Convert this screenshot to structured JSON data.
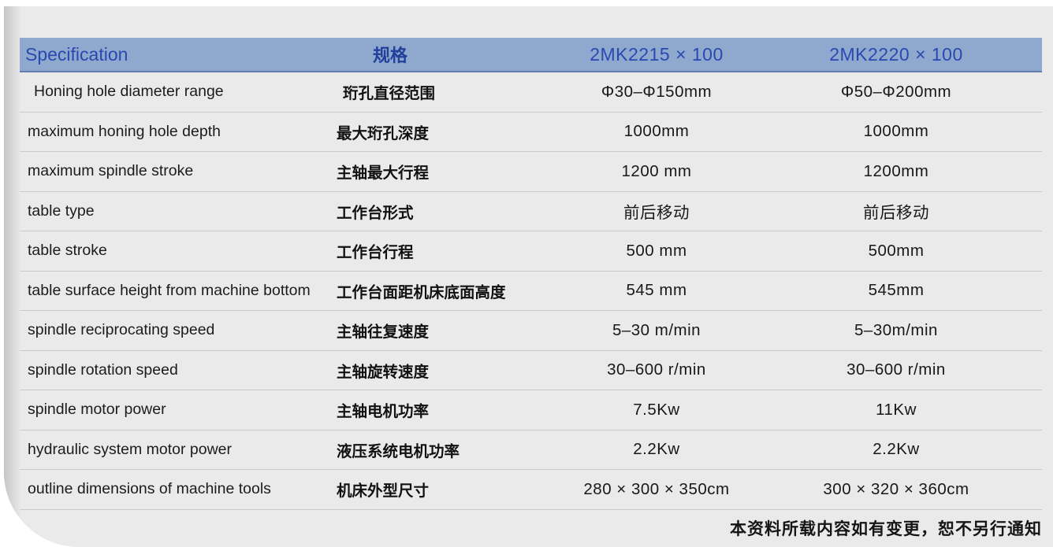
{
  "page": {
    "footer_note": "本资料所载内容如有变更，恕不另行通知"
  },
  "colors": {
    "panel_bg": "#eaeaea",
    "header_bg": "#8fa9ce",
    "header_text_blue": "#2a49b0",
    "header_underline": "#5f7db0",
    "row_separator": "#c9c9c9",
    "body_text": "#1c1c1c",
    "page_bg": "#ffffff"
  },
  "table": {
    "header": {
      "spec_en": "Specification",
      "spec_zh": "规格",
      "model_1": "2MK2215 × 100",
      "model_2": "2MK2220 × 100"
    },
    "rows": [
      {
        "en": "Honing hole diameter range",
        "zh": "珩孔直径范围",
        "v1": "Φ30–Φ150mm",
        "v2": "Φ50–Φ200mm"
      },
      {
        "en": "maximum honing hole depth",
        "zh": "最大珩孔深度",
        "v1": "1000mm",
        "v2": "1000mm"
      },
      {
        "en": "maximum spindle stroke",
        "zh": "主轴最大行程",
        "v1": "1200 mm",
        "v2": "1200mm"
      },
      {
        "en": "table type",
        "zh": "工作台形式",
        "v1": "前后移动",
        "v2": "前后移动"
      },
      {
        "en": "table stroke",
        "zh": "工作台行程",
        "v1": "500 mm",
        "v2": "500mm"
      },
      {
        "en": "table surface height from machine bottom",
        "zh": "工作台面距机床底面高度",
        "v1": "545 mm",
        "v2": "545mm"
      },
      {
        "en": "spindle reciprocating speed",
        "zh": "主轴往复速度",
        "v1": "5–30 m/min",
        "v2": "5–30m/min"
      },
      {
        "en": "spindle rotation speed",
        "zh": "主轴旋转速度",
        "v1": "30–600 r/min",
        "v2": "30–600 r/min"
      },
      {
        "en": "spindle motor power",
        "zh": "主轴电机功率",
        "v1": "7.5Kw",
        "v2": "11Kw"
      },
      {
        "en": "hydraulic system motor power",
        "zh": "液压系统电机功率",
        "v1": "2.2Kw",
        "v2": "2.2Kw"
      },
      {
        "en": "outline dimensions of machine tools",
        "zh": "机床外型尺寸",
        "v1": "280 × 300 × 350cm",
        "v2": "300 × 320 × 360cm"
      }
    ]
  }
}
